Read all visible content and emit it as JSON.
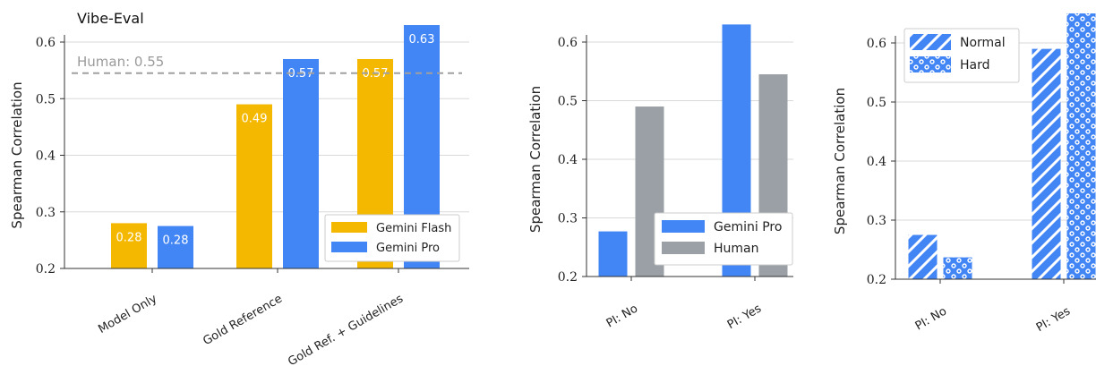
{
  "chart_data": [
    {
      "type": "bar",
      "title": "Vibe-Eval",
      "ylabel": "Spearman Correlation",
      "ylim": [
        0.2,
        0.63
      ],
      "yticks": [
        "0.2",
        "0.3",
        "0.4",
        "0.5",
        "0.6"
      ],
      "categories": [
        "Model Only",
        "Gold Reference",
        "Gold Ref. + Guidelines"
      ],
      "series": [
        {
          "name": "Gemini Flash",
          "values": [
            0.28,
            0.49,
            0.57
          ],
          "labels": [
            "0.28",
            "0.49",
            "0.57"
          ],
          "color": "#f5b800"
        },
        {
          "name": "Gemini Pro",
          "values": [
            0.275,
            0.57,
            0.63
          ],
          "labels": [
            "0.28",
            "0.57",
            "0.63"
          ],
          "color": "#4285f4"
        }
      ],
      "reference_line": {
        "label": "Human: 0.55",
        "value": 0.545,
        "color": "#a0a0a0",
        "style": "dashed"
      },
      "legend_position": "lower-right",
      "grid": "horizontal"
    },
    {
      "type": "bar",
      "ylabel": "Spearman Correlation",
      "ylim": [
        0.2,
        0.63
      ],
      "yticks": [
        "0.2",
        "0.3",
        "0.4",
        "0.5",
        "0.6"
      ],
      "categories": [
        "PI: No",
        "PI: Yes"
      ],
      "series": [
        {
          "name": "Gemini Pro",
          "values": [
            0.277,
            0.63
          ],
          "color": "#4285f4"
        },
        {
          "name": "Human",
          "values": [
            0.49,
            0.545
          ],
          "color": "#9aa0a6"
        }
      ],
      "legend_position": "lower-right",
      "grid": "horizontal"
    },
    {
      "type": "bar",
      "ylabel": "Spearman Correlation",
      "ylim": [
        0.2,
        0.6
      ],
      "yticks": [
        "0.2",
        "0.3",
        "0.4",
        "0.5",
        "0.6"
      ],
      "categories": [
        "PI: No",
        "PI: Yes"
      ],
      "series": [
        {
          "name": "Normal",
          "values": [
            0.275,
            0.59
          ],
          "color": "#4285f4",
          "pattern": "diagonal-stripes"
        },
        {
          "name": "Hard",
          "values": [
            0.237,
            0.65
          ],
          "color": "#4285f4",
          "pattern": "dots"
        }
      ],
      "legend_position": "upper-left",
      "grid": "horizontal"
    }
  ]
}
